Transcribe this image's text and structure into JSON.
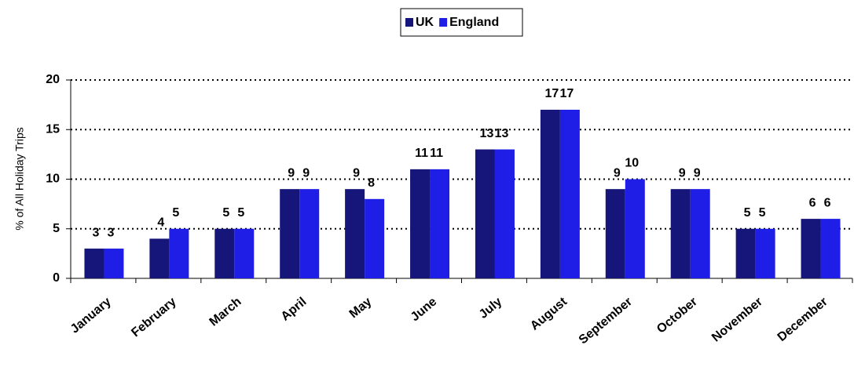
{
  "chart_data": {
    "type": "bar",
    "y_label": "% of All Holiday Trips",
    "categories": [
      "January",
      "February",
      "March",
      "April",
      "May",
      "June",
      "July",
      "August",
      "September",
      "October",
      "November",
      "December"
    ],
    "series": [
      {
        "name": "UK",
        "color": "#15157a",
        "values": [
          3,
          4,
          5,
          9,
          9,
          11,
          13,
          17,
          9,
          9,
          5,
          6
        ]
      },
      {
        "name": "England",
        "color": "#1e1ee6",
        "values": [
          3,
          5,
          5,
          9,
          8,
          11,
          13,
          17,
          10,
          9,
          5,
          6
        ]
      }
    ],
    "ylim": [
      0,
      20
    ],
    "yticks": [
      0,
      5,
      10,
      15,
      20
    ],
    "grid": true,
    "legend": "top"
  }
}
